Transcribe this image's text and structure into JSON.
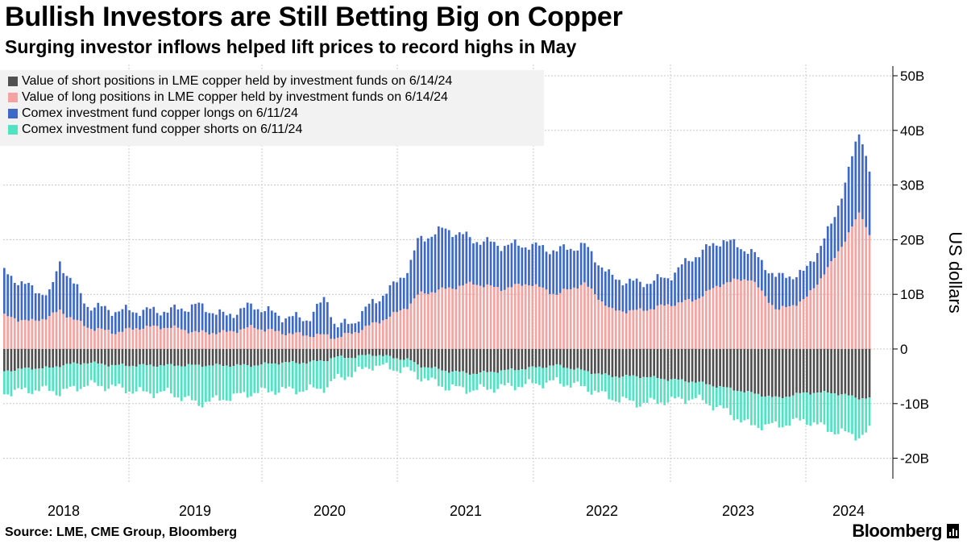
{
  "title": "Bullish Investors are Still Betting Big on Copper",
  "subtitle": "Surging investor inflows helped lift prices to record highs in May",
  "source": "Source: LME, CME Group, Bloomberg",
  "brand": "Bloomberg",
  "colors": {
    "lme_short": "#505050",
    "lme_long": "#f4a3a0",
    "comex_long": "#3d68c9",
    "comex_short": "#50e3c2",
    "grid": "#c8c8c8"
  },
  "legend": [
    {
      "label": "Value of short positions in LME copper held by investment funds  on 6/14/24",
      "color": "#505050"
    },
    {
      "label": "Value of long positions in LME copper held by investment funds  on 6/14/24",
      "color": "#f4a3a0"
    },
    {
      "label": "Comex investment fund copper longs on 6/11/24",
      "color": "#3d68c9"
    },
    {
      "label": "Comex investment fund copper shorts on 6/11/24",
      "color": "#50e3c2"
    }
  ],
  "chart_data": {
    "type": "bar",
    "stacked": true,
    "frequency": "weekly",
    "start": "2017-09",
    "end": "2024-06",
    "title": "Bullish Investors are Still Betting Big on Copper",
    "subtitle": "Surging investor inflows helped lift prices to record highs in May",
    "ylabel": "US dollars",
    "ylim": [
      -24,
      52
    ],
    "yticks": [
      50,
      40,
      30,
      20,
      10,
      0,
      -10,
      -20
    ],
    "ytick_labels": [
      "50B",
      "40B",
      "30B",
      "20B",
      "10B",
      "0",
      "-10B",
      "-20B"
    ],
    "xtick_labels": [
      "2018",
      "2019",
      "2020",
      "2021",
      "2022",
      "2023",
      "2024"
    ],
    "units": "billions of US dollars",
    "anchor_months": [
      0,
      3,
      5,
      6,
      9,
      12,
      15,
      18,
      21,
      24,
      27,
      30,
      33,
      35,
      36,
      38,
      40,
      42,
      44,
      45,
      48,
      51,
      54,
      57,
      60,
      63,
      66,
      69,
      72,
      75,
      78,
      81,
      84,
      87,
      90,
      93,
      94
    ],
    "series": [
      {
        "name": "Value of long positions in LME copper held by investment funds  on 6/14/24",
        "stack": "positive",
        "values": [
          6,
          5,
          6,
          7,
          4,
          3,
          4,
          4,
          3,
          3,
          4,
          3,
          2.5,
          2.5,
          2,
          3,
          4.5,
          6,
          8,
          10,
          11,
          12,
          11,
          12,
          10,
          12,
          7,
          7,
          8,
          9,
          12,
          13,
          7,
          9,
          16,
          25,
          21
        ]
      },
      {
        "name": "Comex investment fund copper longs on 6/11/24",
        "stack": "positive",
        "values": [
          8,
          6,
          4,
          9,
          4,
          4,
          3,
          3,
          5,
          3,
          4,
          3,
          3,
          7,
          2,
          2,
          4,
          5,
          7,
          10,
          11,
          8,
          8,
          7,
          8,
          7,
          6,
          5,
          5,
          8,
          8,
          5,
          6,
          5,
          7,
          15,
          12
        ]
      },
      {
        "name": "Value of short positions in LME copper held by investment funds  on 6/14/24",
        "stack": "negative",
        "values": [
          -4,
          -3.5,
          -3.5,
          -3,
          -2.5,
          -3,
          -3,
          -3,
          -3,
          -3,
          -3,
          -2.5,
          -2.5,
          -2,
          -1.5,
          -1.5,
          -1,
          -1.5,
          -2,
          -3,
          -4,
          -4.5,
          -4,
          -3.5,
          -3,
          -4,
          -5,
          -5,
          -5.5,
          -6,
          -7,
          -8,
          -9,
          -8,
          -8,
          -9,
          -9
        ]
      },
      {
        "name": "Comex investment fund copper shorts on 6/11/24",
        "stack": "negative",
        "values": [
          -4,
          -4,
          -4,
          -5,
          -4,
          -4,
          -5,
          -5,
          -7,
          -6,
          -5,
          -5,
          -5,
          -5,
          -4,
          -3,
          -2,
          -2,
          -2,
          -2,
          -3,
          -3,
          -3,
          -3,
          -3,
          -3,
          -4,
          -5,
          -4,
          -3,
          -4,
          -6,
          -5,
          -5,
          -7,
          -7,
          -6
        ]
      }
    ]
  }
}
